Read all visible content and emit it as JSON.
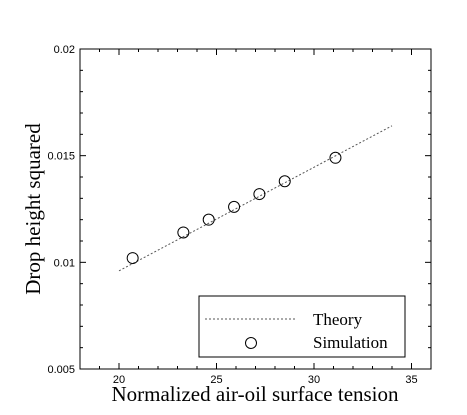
{
  "chart_data": {
    "type": "scatter",
    "title": "",
    "xlabel": "Normalized air-oil surface tension",
    "ylabel": "Drop height squared",
    "xlim": [
      18,
      36
    ],
    "ylim": [
      0.005,
      0.02
    ],
    "x_ticks": [
      20,
      25,
      30,
      35
    ],
    "x_tick_labels": [
      "20",
      "25",
      "30",
      "35"
    ],
    "y_ticks": [
      0.005,
      0.01,
      0.015,
      0.02
    ],
    "y_tick_labels": [
      "0.005",
      "0.01",
      "0.015",
      "0.02"
    ],
    "grid": false,
    "legend_position": "bottom-right",
    "series": [
      {
        "name": "Theory",
        "kind": "line",
        "style": "dotted",
        "color": "#555555",
        "x": [
          20.0,
          34.0
        ],
        "y": [
          0.0096,
          0.0164
        ]
      },
      {
        "name": "Simulation",
        "kind": "scatter",
        "marker": "open-circle",
        "color": "#000000",
        "x": [
          20.7,
          23.3,
          24.6,
          25.9,
          27.2,
          28.5,
          31.1
        ],
        "y": [
          0.0102,
          0.0114,
          0.012,
          0.0126,
          0.0132,
          0.0138,
          0.0149
        ]
      }
    ]
  }
}
